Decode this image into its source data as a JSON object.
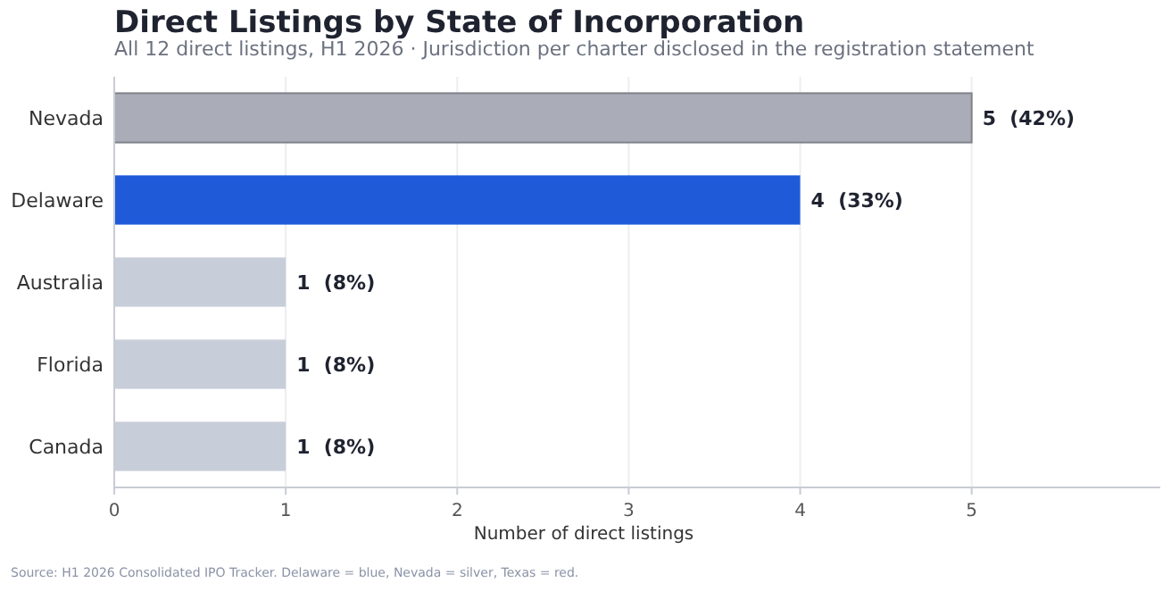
{
  "chart_data": {
    "type": "bar",
    "orientation": "horizontal",
    "title": "Direct Listings by State of Incorporation",
    "subtitle": "All 12 direct listings, H1 2026 · Jurisdiction per charter disclosed in the registration statement",
    "xlabel": "Number of direct listings",
    "categories": [
      "Nevada",
      "Delaware",
      "Australia",
      "Florida",
      "Canada"
    ],
    "values": [
      5,
      4,
      1,
      1,
      1
    ],
    "colors": [
      "#aaadb8",
      "#1f5bd9",
      "#c8ced9",
      "#c8ced9",
      "#c8ced9"
    ],
    "value_labels": [
      "5  (42%)",
      "4  (33%)",
      "1  (8%)",
      "1  (8%)",
      "1  (8%)"
    ],
    "xlim": [
      0,
      6.1
    ],
    "xticks": [
      0,
      1,
      2,
      3,
      4,
      5
    ],
    "grid": "x",
    "annotations": [
      "Source: H1 2026 Consolidated IPO Tracker. Delaware = blue, Nevada = silver, Texas = red."
    ]
  }
}
